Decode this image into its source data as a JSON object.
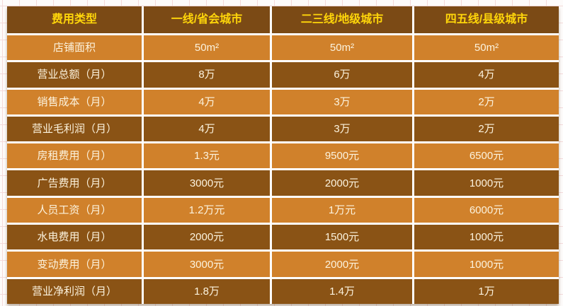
{
  "colors": {
    "page_bg": "#fdfbfa",
    "grid_line": "#f4dada",
    "table_gap": "#ffffff",
    "header_bg": "#7b4a15",
    "header_text": "#ffd60a",
    "row_light_bg": "#d0812b",
    "row_dark_bg": "#8a5315",
    "cell_text": "#fcf3de"
  },
  "table": {
    "headers": [
      "费用类型",
      "一线/省会城市",
      "二三线/地级城市",
      "四五线/县级城市"
    ],
    "rows": [
      {
        "label": "店铺面积",
        "values": [
          "50m²",
          "50m²",
          "50m²"
        ]
      },
      {
        "label": "营业总额（月）",
        "values": [
          "8万",
          "6万",
          "4万"
        ]
      },
      {
        "label": "销售成本（月）",
        "values": [
          "4万",
          "3万",
          "2万"
        ]
      },
      {
        "label": "营业毛利润（月）",
        "values": [
          "4万",
          "3万",
          "2万"
        ]
      },
      {
        "label": "房租费用（月）",
        "values": [
          "1.3元",
          "9500元",
          "6500元"
        ]
      },
      {
        "label": "广告费用（月）",
        "values": [
          "3000元",
          "2000元",
          "1000元"
        ]
      },
      {
        "label": "人员工资（月）",
        "values": [
          "1.2万元",
          "1万元",
          "6000元"
        ]
      },
      {
        "label": "水电费用（月）",
        "values": [
          "2000元",
          "1500元",
          "1000元"
        ]
      },
      {
        "label": "变动费用（月）",
        "values": [
          "3000元",
          "2000元",
          "1000元"
        ]
      },
      {
        "label": "营业净利润（月）",
        "values": [
          "1.8万",
          "1.4万",
          "1万"
        ]
      }
    ]
  },
  "chart_data": {
    "type": "table",
    "columns": [
      "费用类型",
      "一线/省会城市",
      "二三线/地级城市",
      "四五线/县级城市"
    ],
    "rows": [
      [
        "店铺面积",
        "50m²",
        "50m²",
        "50m²"
      ],
      [
        "营业总额（月）",
        "8万",
        "6万",
        "4万"
      ],
      [
        "销售成本（月）",
        "4万",
        "3万",
        "2万"
      ],
      [
        "营业毛利润（月）",
        "4万",
        "3万",
        "2万"
      ],
      [
        "房租费用（月）",
        "1.3元",
        "9500元",
        "6500元"
      ],
      [
        "广告费用（月）",
        "3000元",
        "2000元",
        "1000元"
      ],
      [
        "人员工资（月）",
        "1.2万元",
        "1万元",
        "6000元"
      ],
      [
        "水电费用（月）",
        "2000元",
        "1500元",
        "1000元"
      ],
      [
        "变动费用（月）",
        "3000元",
        "2000元",
        "1000元"
      ],
      [
        "营业净利润（月）",
        "1.8万",
        "1.4万",
        "1万"
      ]
    ],
    "legend_position": "none",
    "grid": false
  }
}
